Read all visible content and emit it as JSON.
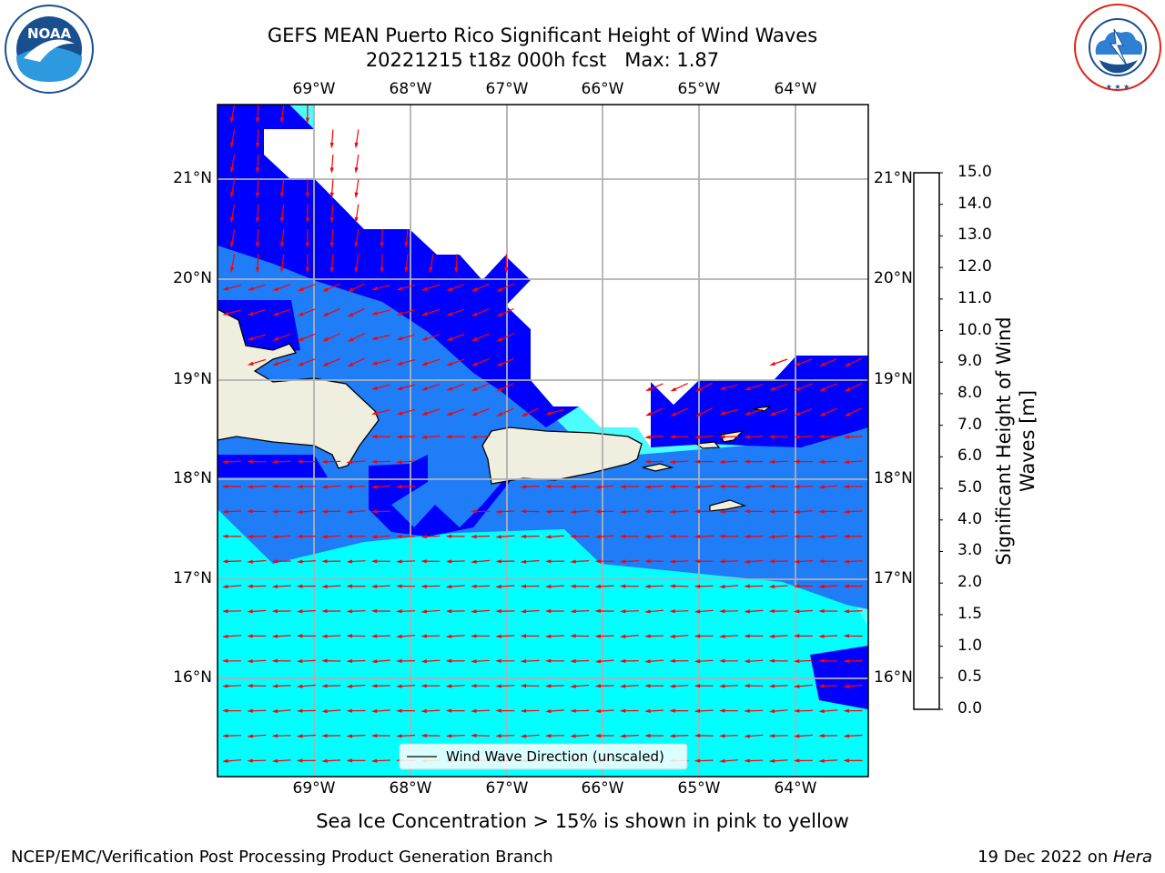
{
  "header": {
    "title_line1": "GEFS MEAN Puerto Rico Significant Height of Wind Waves",
    "title_line2": "20221215 t18z 000h fcst   Max: 1.87"
  },
  "logos": {
    "noaa": {
      "text": "NOAA",
      "ring_text": "NATIONAL OCEANIC AND ATMOSPHERIC ADMINISTRATION · U.S. DEPARTMENT OF COMMERCE",
      "color": "#1a4f8f"
    },
    "nws": {
      "ring_text": "NATIONAL WEATHER SERVICE",
      "color": "#d9251d"
    }
  },
  "map": {
    "lon_labels": [
      "69°W",
      "68°W",
      "67°W",
      "66°W",
      "65°W",
      "64°W"
    ],
    "lat_labels": [
      "21°N",
      "20°N",
      "19°N",
      "18°N",
      "17°N",
      "16°N"
    ],
    "legend_label": "Wind Wave Direction (unscaled)",
    "land_color": "#efeedf",
    "arrow_color": "#ff0000"
  },
  "colorbar": {
    "title_line1": "Significant Height of Wind",
    "title_line2": "Waves [m]",
    "ticks": [
      "15.0",
      "14.0",
      "13.0",
      "12.0",
      "11.0",
      "10.0",
      "9.0",
      "8.0",
      "7.0",
      "6.0",
      "5.0",
      "4.0",
      "3.0",
      "2.0",
      "1.5",
      "1.0",
      "0.5",
      "0.0"
    ],
    "colors": [
      "#0000ff",
      "#1e7df7",
      "#00ffff",
      "#4dfcfd",
      "#a8fdfd",
      "#4af97f",
      "#06dc20",
      "#2cd912",
      "#6ce41a",
      "#a5e414",
      "#d7f504",
      "#ffff00",
      "#ffd600",
      "#ffb400",
      "#ff8c00",
      "#ff6400",
      "#ff3c00",
      "#ff1400"
    ]
  },
  "notes": {
    "sea_ice": "Sea Ice Concentration > 15% is shown in pink to yellow"
  },
  "footer": {
    "left": "NCEP/EMC/Verification Post Processing Product Generation Branch",
    "right_date": "19 Dec 2022 on ",
    "right_machine": "Hera"
  }
}
